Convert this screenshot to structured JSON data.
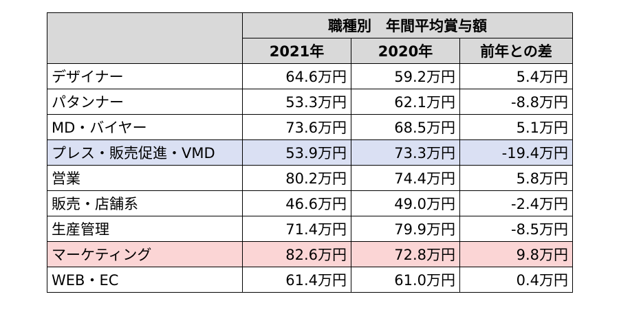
{
  "table": {
    "title": "職種別　年間平均賞与額",
    "columns": [
      "2021年",
      "2020年",
      "前年との差"
    ],
    "rows": [
      {
        "job": "デザイナー",
        "y2021": "64.6万円",
        "y2020": "59.2万円",
        "diff": "5.4万円",
        "highlight": "none"
      },
      {
        "job": "パタンナー",
        "y2021": "53.3万円",
        "y2020": "62.1万円",
        "diff": "-8.8万円",
        "highlight": "none"
      },
      {
        "job": "MD・バイヤー",
        "y2021": "73.6万円",
        "y2020": "68.5万円",
        "diff": "5.1万円",
        "highlight": "none"
      },
      {
        "job": "プレス・販売促進・VMD",
        "y2021": "53.9万円",
        "y2020": "73.3万円",
        "diff": "-19.4万円",
        "highlight": "blue"
      },
      {
        "job": "営業",
        "y2021": "80.2万円",
        "y2020": "74.4万円",
        "diff": "5.8万円",
        "highlight": "none"
      },
      {
        "job": "販売・店舗系",
        "y2021": "46.6万円",
        "y2020": "49.0万円",
        "diff": "-2.4万円",
        "highlight": "none"
      },
      {
        "job": "生産管理",
        "y2021": "71.4万円",
        "y2020": "79.9万円",
        "diff": "-8.5万円",
        "highlight": "none"
      },
      {
        "job": "マーケティング",
        "y2021": "82.6万円",
        "y2020": "72.8万円",
        "diff": "9.8万円",
        "highlight": "pink"
      },
      {
        "job": "WEB・EC",
        "y2021": "61.4万円",
        "y2020": "61.0万円",
        "diff": "0.4万円",
        "highlight": "none"
      }
    ]
  },
  "colors": {
    "header_bg": "#d9d9d9",
    "highlight_blue": "#dae0f3",
    "highlight_pink": "#fbd5d5",
    "border": "#000000"
  }
}
